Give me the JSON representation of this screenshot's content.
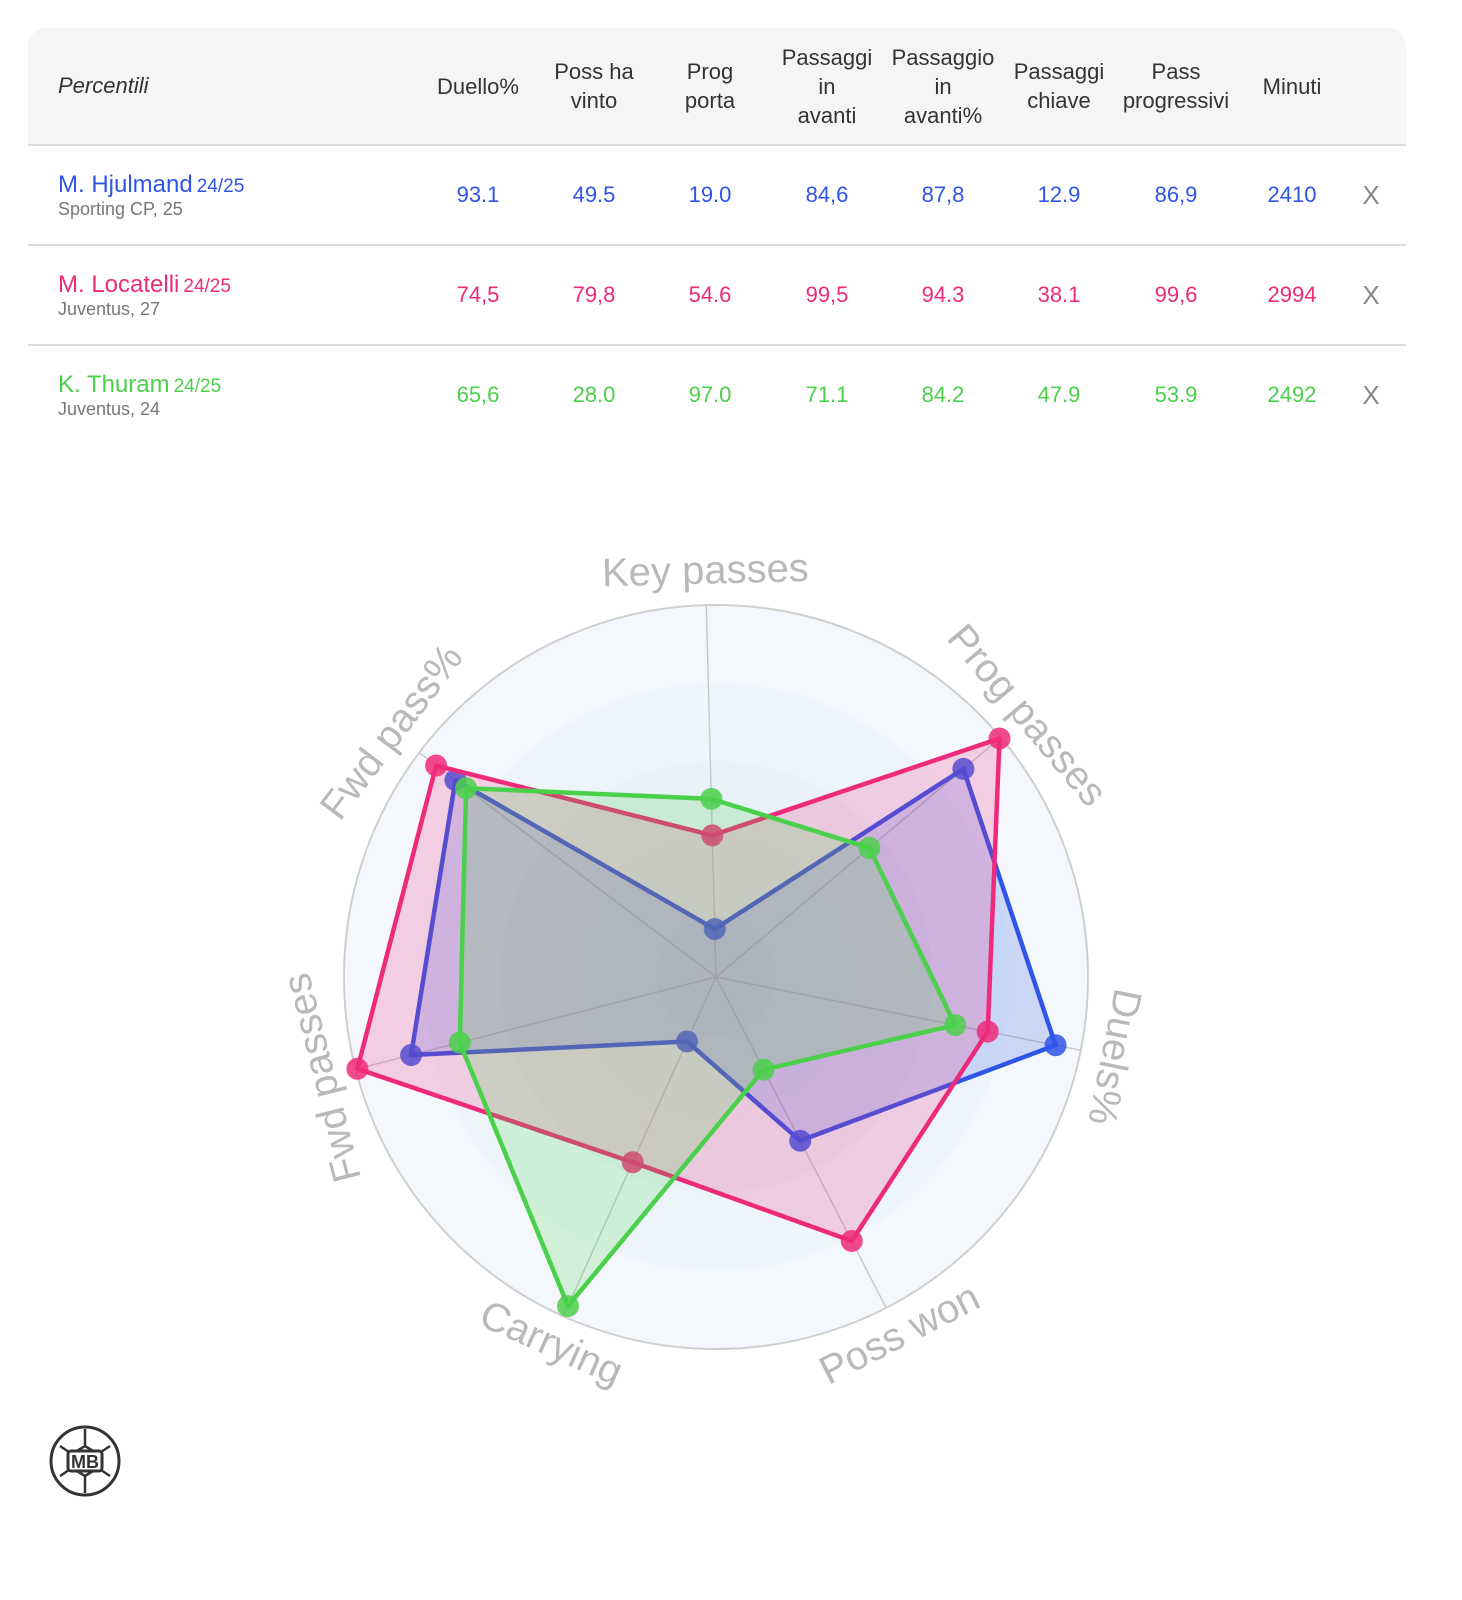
{
  "table": {
    "header_label": "Percentili",
    "columns": [
      [
        "Duello%"
      ],
      [
        "Poss ha",
        "vinto"
      ],
      [
        "Prog",
        "porta"
      ],
      [
        "Passaggi",
        "in",
        "avanti"
      ],
      [
        "Passaggio",
        "in",
        "avanti%"
      ],
      [
        "Passaggi",
        "chiave"
      ],
      [
        "Pass",
        "progressivi"
      ],
      [
        "Minuti"
      ]
    ],
    "remove_label": "X",
    "rows": [
      {
        "name": "M. Hjulmand",
        "season": "24/25",
        "team": "Sporting CP, 25",
        "color": "#2f55e6",
        "values": [
          "93.1",
          "49.5",
          "19.0",
          "84,6",
          "87,8",
          "12.9",
          "86,9",
          "2410"
        ]
      },
      {
        "name": "M. Locatelli",
        "season": "24/25",
        "team": "Juventus, 27",
        "color": "#ee2a7b",
        "values": [
          "74,5",
          "79,8",
          "54.6",
          "99,5",
          "94.3",
          "38.1",
          "99,6",
          "2994"
        ]
      },
      {
        "name": "K. Thuram",
        "season": "24/25",
        "team": "Juventus, 24",
        "color": "#4bd04b",
        "values": [
          "65,6",
          "28.0",
          "97.0",
          "71.1",
          "84.2",
          "47.9",
          "53.9",
          "2492"
        ]
      }
    ]
  },
  "chart_data": {
    "type": "radar",
    "axes": [
      "Key passes",
      "Prog passes",
      "Duels%",
      "Poss won",
      "Carrying",
      "Fwd passes",
      "Fwd pass%"
    ],
    "range": [
      0,
      100
    ],
    "series": [
      {
        "name": "M. Hjulmand",
        "color": "#2f55e6",
        "values": [
          12.9,
          86.9,
          93.1,
          49.5,
          19.0,
          84.6,
          87.8
        ]
      },
      {
        "name": "M. Locatelli",
        "color": "#ee2a7b",
        "values": [
          38.1,
          99.6,
          74.5,
          79.8,
          54.6,
          99.5,
          94.3
        ]
      },
      {
        "name": "K. Thuram",
        "color": "#4bd04b",
        "values": [
          47.9,
          53.9,
          65.6,
          28.0,
          97.0,
          71.1,
          84.2
        ]
      }
    ]
  },
  "logo": {
    "text": "MB"
  }
}
